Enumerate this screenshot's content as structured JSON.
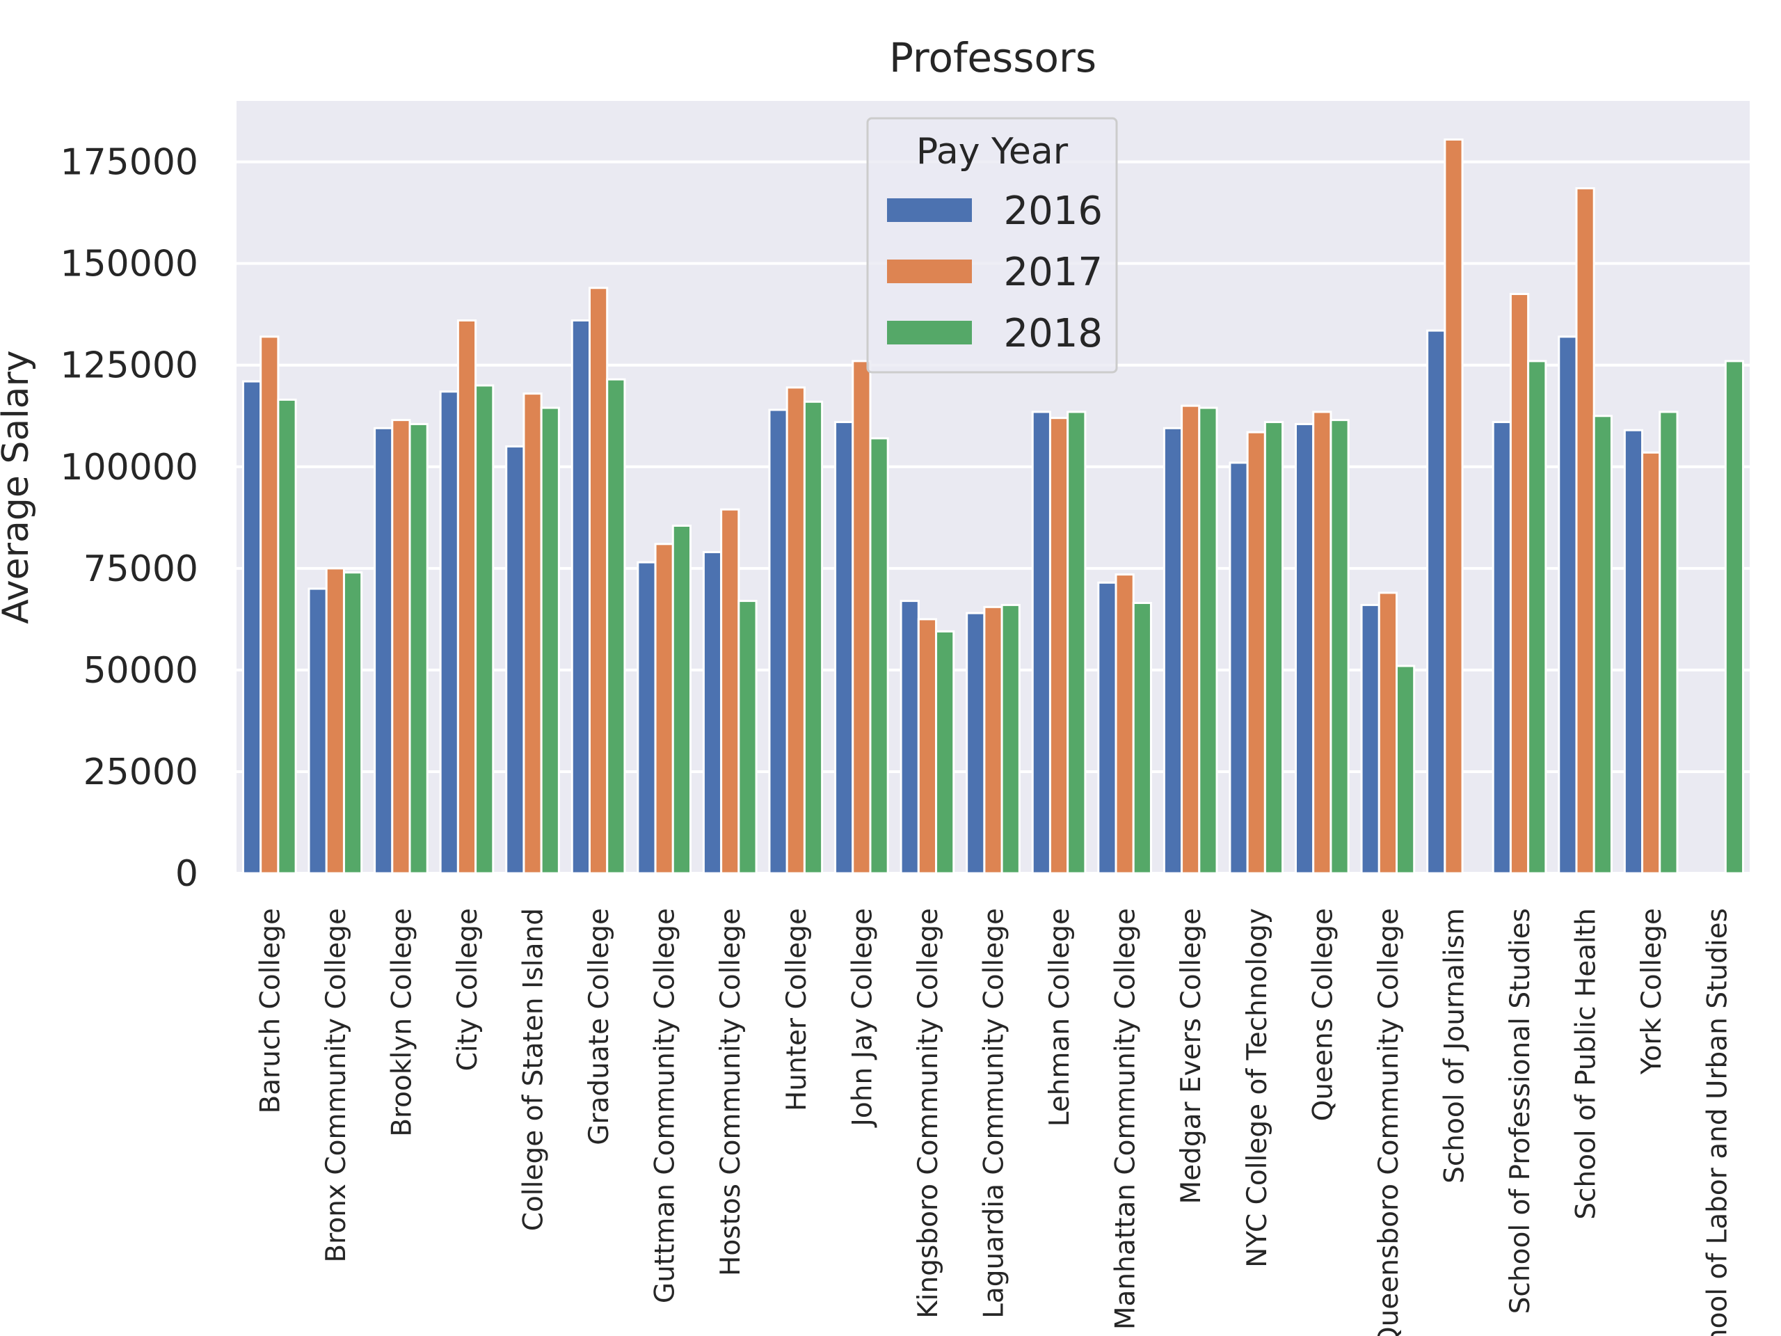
{
  "chart_data": {
    "type": "bar",
    "title": "Professors",
    "xlabel": "",
    "ylabel": "Average Salary",
    "ylim": [
      0,
      190000
    ],
    "yticks": [
      0,
      25000,
      50000,
      75000,
      100000,
      125000,
      150000,
      175000
    ],
    "grid": true,
    "legend": {
      "title": "Pay Year",
      "placement": "top-center"
    },
    "categories": [
      "Baruch College",
      "Bronx Community College",
      "Brooklyn College",
      "City College",
      "College of Staten Island",
      "Graduate College",
      "Guttman Community College",
      "Hostos Community College",
      "Hunter College",
      "John Jay College",
      "Kingsboro Community College",
      "Laguardia Community College",
      "Lehman College",
      "Manhattan Community College",
      "Medgar Evers College",
      "NYC College of Technology",
      "Queens College",
      "Queensboro Community College",
      "School of Journalism",
      "School of Professional Studies",
      "School of Public Health",
      "York College",
      "School of Labor and Urban Studies"
    ],
    "series": [
      {
        "name": "2016",
        "color": "#4c72b0",
        "values": [
          121000,
          70000,
          109500,
          118500,
          105000,
          136000,
          76500,
          79000,
          114000,
          111000,
          67000,
          64000,
          113500,
          71500,
          109500,
          101000,
          110500,
          66000,
          133500,
          111000,
          132000,
          109000,
          null
        ]
      },
      {
        "name": "2017",
        "color": "#dd8452",
        "values": [
          132000,
          75000,
          111500,
          136000,
          118000,
          144000,
          81000,
          89500,
          119500,
          126000,
          62500,
          65500,
          112000,
          73500,
          115000,
          108500,
          113500,
          69000,
          180500,
          142500,
          168500,
          103500,
          null
        ]
      },
      {
        "name": "2018",
        "color": "#55a868",
        "values": [
          116500,
          74000,
          110500,
          120000,
          114500,
          121500,
          85500,
          67000,
          116000,
          107000,
          59500,
          66000,
          113500,
          66500,
          114500,
          111000,
          111500,
          51000,
          null,
          126000,
          112500,
          113500,
          126000
        ]
      }
    ]
  }
}
